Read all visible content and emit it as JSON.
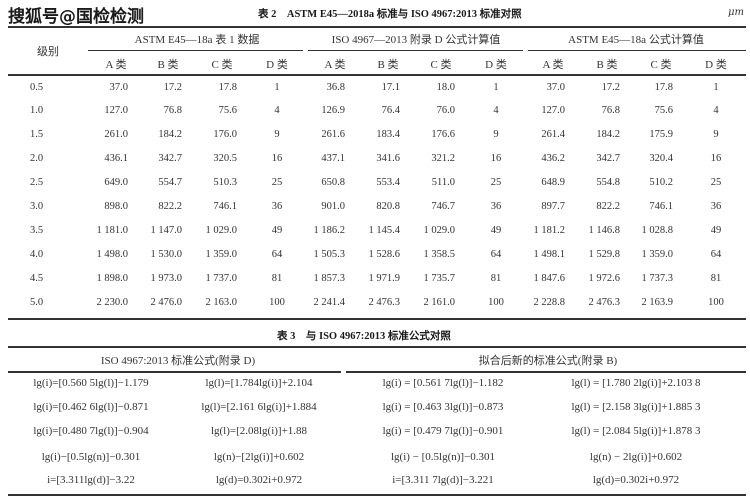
{
  "watermark": "搜狐号@国检检测",
  "table2": {
    "title": "表 2　ASTM E45—2018a 标准与 ISO 4967:2013 标准对照",
    "unit": "μm",
    "row_header": "级别",
    "groups": [
      "ASTM E45—18a 表 1 数据",
      "ISO 4967—2013 附录 D 公式计算值",
      "ASTM E45—18a 公式计算值"
    ],
    "subheaders": [
      "A 类",
      "B 类",
      "C 类",
      "D 类",
      "A 类",
      "B 类",
      "C 类",
      "D 类",
      "A 类",
      "B 类",
      "C 类",
      "D 类"
    ],
    "rows": [
      {
        "level": "0.5",
        "values": [
          "37.0",
          "17.2",
          "17.8",
          "1",
          "36.8",
          "17.1",
          "18.0",
          "1",
          "37.0",
          "17.2",
          "17.8",
          "1"
        ]
      },
      {
        "level": "1.0",
        "values": [
          "127.0",
          "76.8",
          "75.6",
          "4",
          "126.9",
          "76.4",
          "76.0",
          "4",
          "127.0",
          "76.8",
          "75.6",
          "4"
        ]
      },
      {
        "level": "1.5",
        "values": [
          "261.0",
          "184.2",
          "176.0",
          "9",
          "261.6",
          "183.4",
          "176.6",
          "9",
          "261.4",
          "184.2",
          "175.9",
          "9"
        ]
      },
      {
        "level": "2.0",
        "values": [
          "436.1",
          "342.7",
          "320.5",
          "16",
          "437.1",
          "341.6",
          "321.2",
          "16",
          "436.2",
          "342.7",
          "320.4",
          "16"
        ]
      },
      {
        "level": "2.5",
        "values": [
          "649.0",
          "554.7",
          "510.3",
          "25",
          "650.8",
          "553.4",
          "511.0",
          "25",
          "648.9",
          "554.8",
          "510.2",
          "25"
        ]
      },
      {
        "level": "3.0",
        "values": [
          "898.0",
          "822.2",
          "746.1",
          "36",
          "901.0",
          "820.8",
          "746.7",
          "36",
          "897.7",
          "822.2",
          "746.1",
          "36"
        ]
      },
      {
        "level": "3.5",
        "values": [
          "1 181.0",
          "1 147.0",
          "1 029.0",
          "49",
          "1 186.2",
          "1 145.4",
          "1 029.0",
          "49",
          "1 181.2",
          "1 146.8",
          "1 028.8",
          "49"
        ]
      },
      {
        "level": "4.0",
        "values": [
          "1 498.0",
          "1 530.0",
          "1 359.0",
          "64",
          "1 505.3",
          "1 528.6",
          "1 358.5",
          "64",
          "1 498.1",
          "1 529.8",
          "1 359.0",
          "64"
        ]
      },
      {
        "level": "4.5",
        "values": [
          "1 898.0",
          "1 973.0",
          "1 737.0",
          "81",
          "1 857.3",
          "1 971.9",
          "1 735.7",
          "81",
          "1 847.6",
          "1 972.6",
          "1 737.3",
          "81"
        ]
      },
      {
        "level": "5.0",
        "values": [
          "2 230.0",
          "2 476.0",
          "2 163.0",
          "100",
          "2 241.4",
          "2 476.3",
          "2 161.0",
          "100",
          "2 228.8",
          "2 476.3",
          "2 163.9",
          "100"
        ]
      }
    ]
  },
  "table3": {
    "title": "表 3　与 ISO 4967:2013 标准公式对照",
    "groups": [
      "ISO 4967:2013 标准公式(附录 D)",
      "拟合后新的标准公式(附录 B)"
    ],
    "rows": [
      [
        "lg(i)=[0.560 5lg(l)]−1.179",
        "lg(l)=[1.784lg(i)]+2.104",
        "lg(i) = [0.561 7lg(l)]−1.182",
        "lg(l) = [1.780 2lg(i)]+2.103 8"
      ],
      [
        "lg(i)=[0.462 6lg(l)]−0.871",
        "lg(l)=[2.161 6lg(i)]+1.884",
        "lg(i) = [0.463 3lg(l)]−0.873",
        "lg(l) = [2.158 3lg(i)]+1.885 3"
      ],
      [
        "lg(i)=[0.480 7lg(l)]−0.904",
        "lg(l)=[2.08lg(i)]+1.88",
        "lg(i) = [0.479 7lg(l)]−0.901",
        "lg(l) = [2.084 5lg(i)]+1.878 3"
      ],
      [
        "lg(i)−[0.5lg(n)]−0.301",
        "lg(n)−[2lg(i)]+0.602",
        "lg(i) − [0.5lg(n)]−0.301",
        "lg(n) − 2lg(i)]+0.602"
      ],
      [
        "i=[3.311lg(d)]−3.22",
        "lg(d)=0.302i+0.972",
        "i=[3.311 7lg(d)]−3.221",
        "lg(d)=0.302i+0.972"
      ]
    ]
  }
}
